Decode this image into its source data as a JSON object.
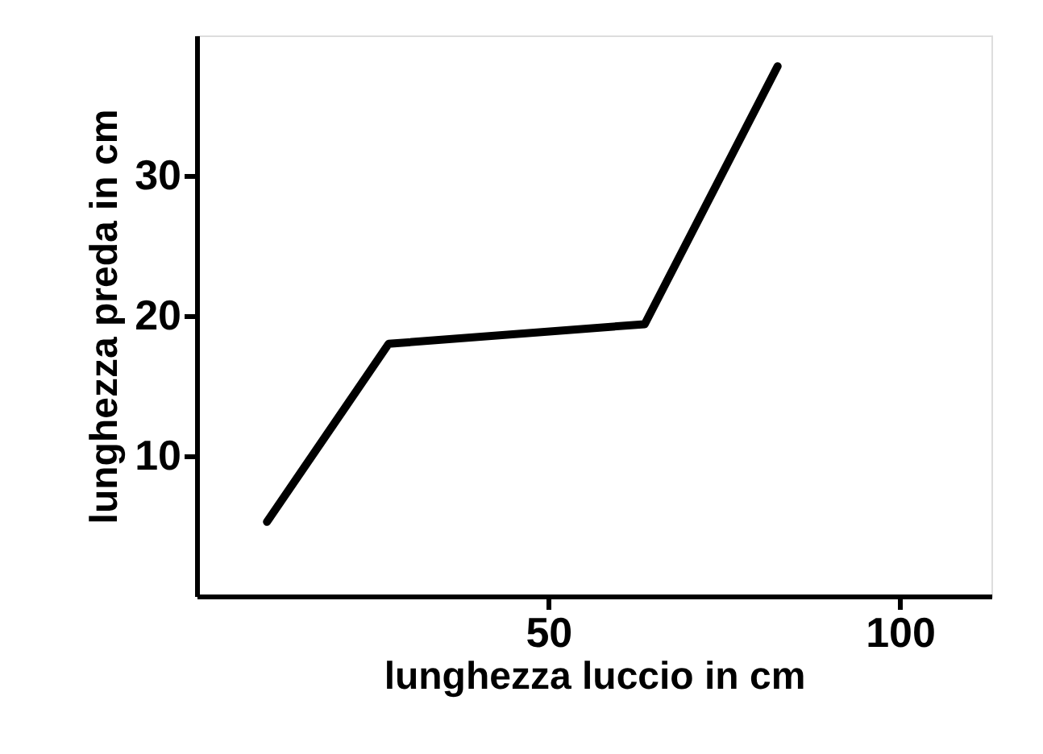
{
  "chart_data": {
    "type": "line",
    "xlabel": "lunghezza luccio in cm",
    "ylabel": "lunghezza preda in cm",
    "x": [
      10,
      27.3,
      63.7,
      82.6
    ],
    "series": [
      {
        "color": "#000000",
        "values": [
          5.3,
          18.0,
          19.4,
          37.8
        ]
      }
    ],
    "xlim": [
      0,
      113
    ],
    "xticks": [
      50,
      100
    ],
    "ylim": [
      0,
      40
    ],
    "yticks": [
      10,
      20,
      30
    ],
    "grid": false,
    "legend": false,
    "marker": "none",
    "line_style": "solid"
  }
}
